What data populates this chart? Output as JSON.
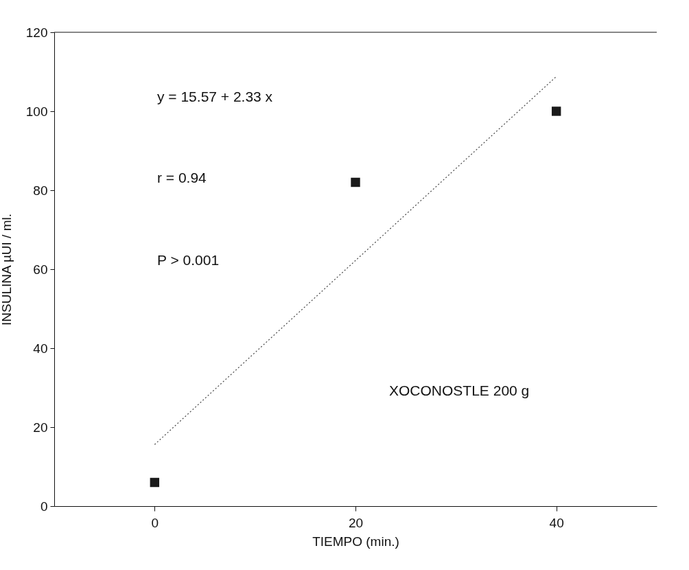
{
  "chart_data": {
    "type": "scatter",
    "xlabel": "TIEMPO (min.)",
    "ylabel": "INSULINA µUI / ml.",
    "xlim": [
      -10,
      50
    ],
    "xticks": [
      0,
      20,
      40
    ],
    "ylim": [
      0,
      120
    ],
    "yticks": [
      0,
      20,
      40,
      60,
      80,
      100,
      120
    ],
    "grid": false,
    "annotations": [
      "y = 15.57 + 2.33 x",
      "r = 0.94",
      "P > 0.001",
      "XOCONOSTLE  200 g"
    ],
    "series": [
      {
        "color": "#1a1a1a",
        "marker": "square",
        "x": [
          0,
          20,
          40
        ],
        "values": [
          6,
          82,
          100
        ]
      },
      {
        "type": "line",
        "color": "#444444",
        "line_style": "dotted",
        "x": [
          0,
          40
        ],
        "values": [
          15.6,
          108.8
        ]
      }
    ]
  }
}
